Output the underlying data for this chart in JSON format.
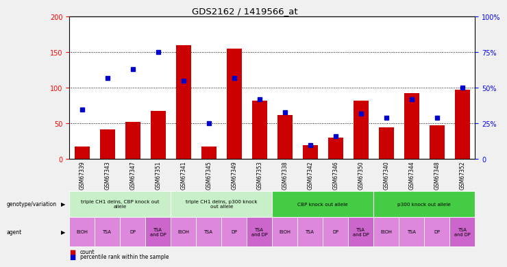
{
  "title": "GDS2162 / 1419566_at",
  "samples": [
    "GSM67339",
    "GSM67343",
    "GSM67347",
    "GSM67351",
    "GSM67341",
    "GSM67345",
    "GSM67349",
    "GSM67353",
    "GSM67338",
    "GSM67342",
    "GSM67346",
    "GSM67350",
    "GSM67340",
    "GSM67344",
    "GSM67348",
    "GSM67352"
  ],
  "counts": [
    18,
    42,
    52,
    68,
    160,
    18,
    155,
    82,
    62,
    20,
    30,
    82,
    45,
    93,
    47,
    97
  ],
  "percentiles": [
    35,
    57,
    63,
    75,
    55,
    25,
    57,
    42,
    33,
    10,
    16,
    32,
    29,
    42,
    29,
    50
  ],
  "ylim_left": [
    0,
    200
  ],
  "ylim_right": [
    0,
    100
  ],
  "yticks_left": [
    0,
    50,
    100,
    150,
    200
  ],
  "yticks_right": [
    0,
    25,
    50,
    75,
    100
  ],
  "bar_color": "#cc0000",
  "dot_color": "#0000cc",
  "plot_bg": "#ffffff",
  "fig_bg": "#f0f0f0",
  "dotted_grid": [
    50,
    100,
    150
  ],
  "genotype_groups": [
    {
      "label": "triple CH1 delns, CBP knock out\nallele",
      "start": 0,
      "end": 4,
      "color": "#c8f0c8"
    },
    {
      "label": "triple CH1 delns, p300 knock\nout allele",
      "start": 4,
      "end": 8,
      "color": "#c8f0c8"
    },
    {
      "label": "CBP knock out allele",
      "start": 8,
      "end": 12,
      "color": "#44cc44"
    },
    {
      "label": "p300 knock out allele",
      "start": 12,
      "end": 16,
      "color": "#44cc44"
    }
  ],
  "agent_labels": [
    "EtOH",
    "TSA",
    "DP",
    "TSA\nand DP",
    "EtOH",
    "TSA",
    "DP",
    "TSA\nand DP",
    "EtOH",
    "TSA",
    "DP",
    "TSA\nand DP",
    "EtOH",
    "TSA",
    "DP",
    "TSA\nand DP"
  ],
  "agent_color_normal": "#dd88dd",
  "agent_color_wide": "#cc66cc",
  "wide_indices": [
    3,
    7,
    11,
    15
  ],
  "legend_count_color": "#cc0000",
  "legend_pct_color": "#0000cc",
  "bar_width": 0.6
}
